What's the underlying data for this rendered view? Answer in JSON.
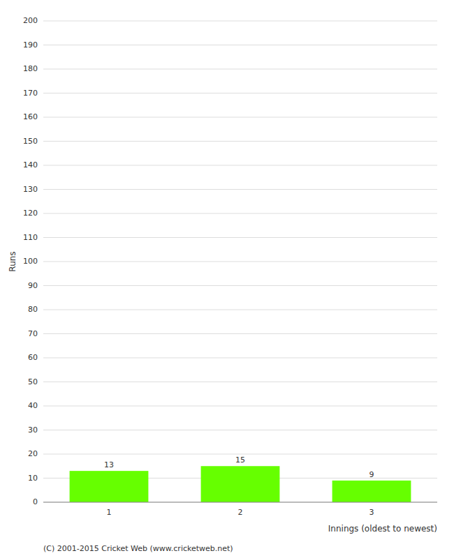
{
  "chart_data": {
    "type": "bar",
    "xlabel": "Innings (oldest to newest)",
    "ylabel": "Runs",
    "annotations": [
      "(C) 2001-2015 Cricket Web (www.cricketweb.net)"
    ],
    "categories": [
      "1",
      "2",
      "3"
    ],
    "values": [
      13,
      15,
      9
    ],
    "color": "#66ff00",
    "ylim": [
      0,
      200
    ],
    "yticks": [
      0,
      10,
      20,
      30,
      40,
      50,
      60,
      70,
      80,
      90,
      100,
      110,
      120,
      130,
      140,
      150,
      160,
      170,
      180,
      190,
      200
    ],
    "grid": true,
    "data_labels": true
  }
}
